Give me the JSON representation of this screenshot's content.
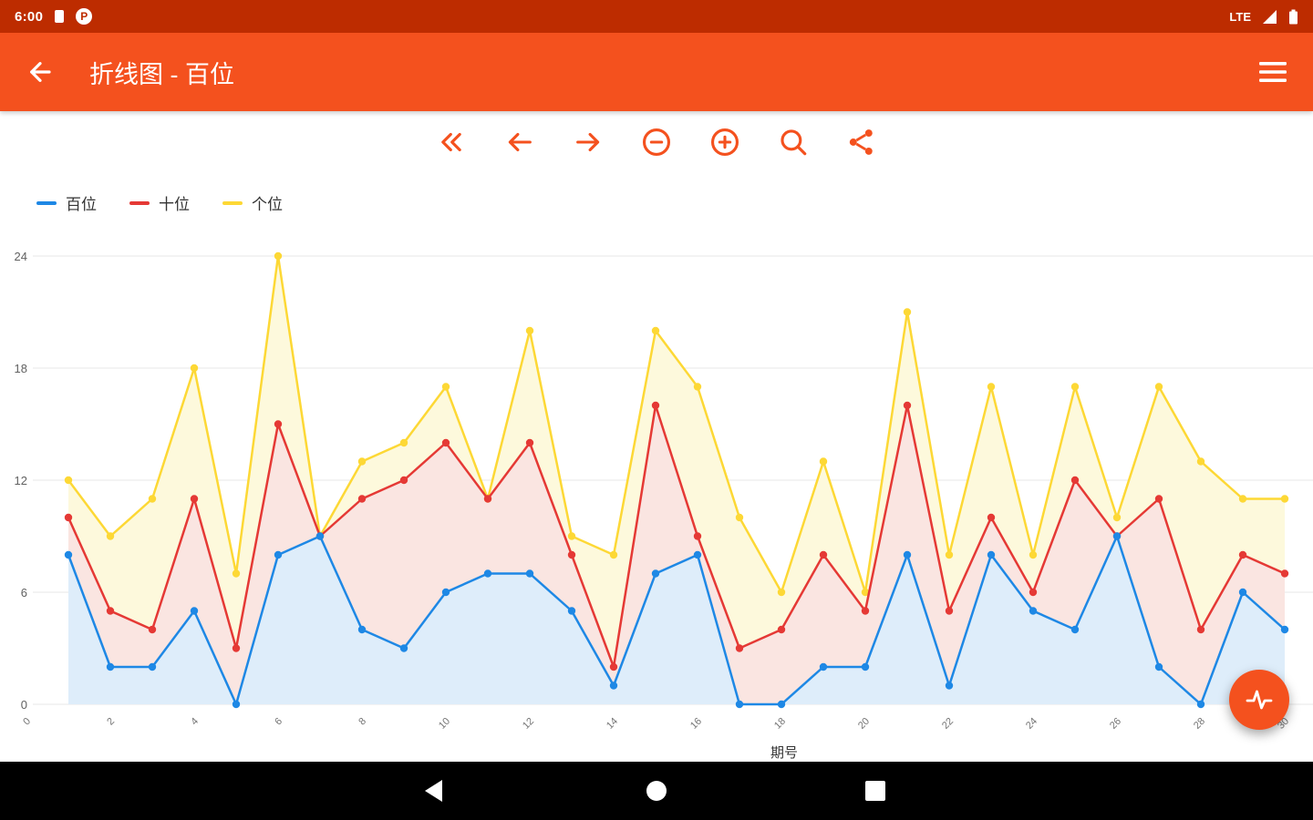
{
  "status_bar": {
    "time": "6:00",
    "network": "LTE",
    "p_badge": "P"
  },
  "app_bar": {
    "title": "折线图 - 百位"
  },
  "toolbar": {
    "icons": [
      "skip-back",
      "pan-left",
      "pan-right",
      "zoom-out",
      "zoom-in",
      "search",
      "share"
    ]
  },
  "chart_data": {
    "type": "line",
    "title": "",
    "xlabel": "期号",
    "ylabel": "",
    "ylim": [
      0,
      24
    ],
    "y_ticks": [
      0,
      6,
      12,
      18,
      24
    ],
    "x": [
      1,
      2,
      3,
      4,
      5,
      6,
      7,
      8,
      9,
      10,
      11,
      12,
      13,
      14,
      15,
      16,
      17,
      18,
      19,
      20,
      21,
      22,
      23,
      24,
      25,
      26,
      27,
      28,
      29,
      30
    ],
    "x_ticks": [
      0,
      2,
      4,
      6,
      8,
      10,
      12,
      14,
      16,
      18,
      20,
      22,
      24,
      26,
      28,
      30
    ],
    "grid": true,
    "legend_position": "top-left",
    "series": [
      {
        "name": "百位",
        "color": "#1E88E5",
        "fill": "#DEEDFA",
        "values": [
          8,
          2,
          2,
          5,
          0,
          8,
          9,
          4,
          3,
          6,
          7,
          7,
          5,
          1,
          7,
          8,
          0,
          0,
          2,
          2,
          8,
          1,
          8,
          5,
          4,
          9,
          2,
          0,
          6,
          4
        ]
      },
      {
        "name": "十位",
        "color": "#E53935",
        "fill": "#FAE5E1",
        "values": [
          10,
          5,
          4,
          11,
          3,
          15,
          9,
          11,
          12,
          14,
          11,
          14,
          8,
          2,
          16,
          9,
          3,
          4,
          8,
          5,
          16,
          5,
          10,
          6,
          12,
          9,
          11,
          4,
          8,
          7
        ]
      },
      {
        "name": "个位",
        "color": "#FDD835",
        "fill": "#FDF9DC",
        "values": [
          12,
          9,
          11,
          18,
          7,
          24,
          9,
          13,
          14,
          17,
          11,
          20,
          9,
          8,
          20,
          17,
          10,
          6,
          13,
          6,
          21,
          8,
          17,
          8,
          17,
          10,
          17,
          13,
          11,
          11
        ]
      }
    ]
  }
}
